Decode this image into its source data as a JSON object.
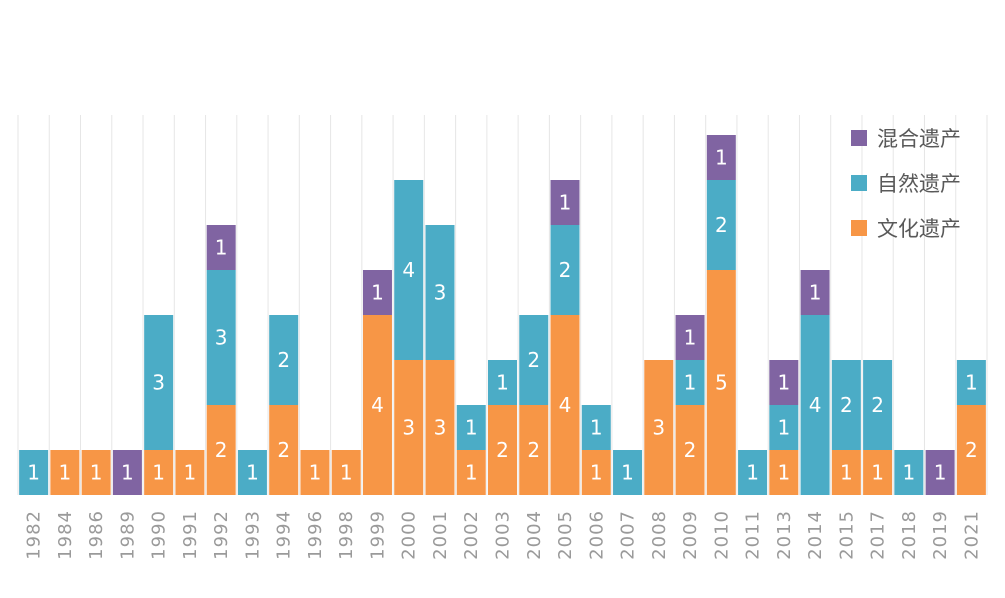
{
  "chart_data": {
    "type": "bar",
    "stacked": true,
    "categories": [
      "1982",
      "1984",
      "1986",
      "1989",
      "1990",
      "1991",
      "1992",
      "1993",
      "1994",
      "1996",
      "1998",
      "1999",
      "2000",
      "2001",
      "2002",
      "2003",
      "2004",
      "2005",
      "2006",
      "2007",
      "2008",
      "2009",
      "2010",
      "2011",
      "2013",
      "2014",
      "2015",
      "2017",
      "2018",
      "2019",
      "2021"
    ],
    "series": [
      {
        "name": "文化遗产",
        "color": "#F79646",
        "values": [
          0,
          1,
          1,
          0,
          1,
          1,
          2,
          0,
          2,
          1,
          1,
          4,
          3,
          3,
          1,
          2,
          2,
          4,
          1,
          0,
          3,
          2,
          5,
          0,
          1,
          0,
          1,
          1,
          0,
          0,
          2
        ]
      },
      {
        "name": "自然遗产",
        "color": "#4BACC6",
        "values": [
          1,
          0,
          0,
          0,
          3,
          0,
          3,
          1,
          2,
          0,
          0,
          0,
          4,
          3,
          1,
          1,
          2,
          2,
          1,
          1,
          0,
          1,
          2,
          1,
          1,
          4,
          2,
          2,
          1,
          0,
          1
        ]
      },
      {
        "name": "混合遗产",
        "color": "#8064A2",
        "values": [
          0,
          0,
          0,
          1,
          0,
          0,
          1,
          0,
          0,
          0,
          0,
          1,
          0,
          0,
          0,
          0,
          0,
          1,
          0,
          0,
          0,
          1,
          1,
          0,
          1,
          1,
          0,
          0,
          0,
          1,
          0
        ]
      }
    ],
    "ylim": [
      0,
      8.5
    ],
    "grid": "vertical",
    "legend": "top-right",
    "title": "",
    "xlabel": "",
    "ylabel": ""
  }
}
